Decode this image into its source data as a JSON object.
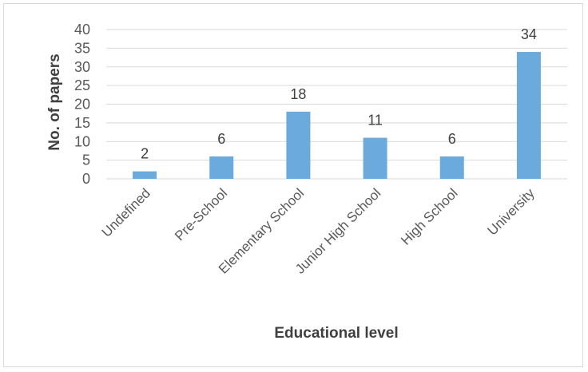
{
  "chart_data": {
    "type": "bar",
    "categories": [
      "Undefined",
      "Pre-School",
      "Elementary School",
      "Junior High School",
      "High School",
      "University"
    ],
    "values": [
      2,
      6,
      18,
      11,
      6,
      34
    ],
    "data_labels": [
      "2",
      "6",
      "18",
      "11",
      "6",
      "34"
    ],
    "xlabel": "Educational level",
    "ylabel": "No. of papers",
    "ylim": [
      0,
      40
    ],
    "yticks": [
      0,
      5,
      10,
      15,
      20,
      25,
      30,
      35,
      40
    ],
    "grid": true,
    "bar_color": "#6aaadc",
    "grid_color": "#d9d9d9"
  }
}
